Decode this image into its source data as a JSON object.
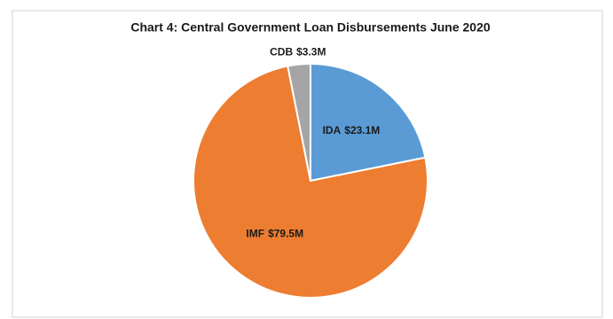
{
  "chart_data": {
    "type": "pie",
    "title": "Chart 4: Central Government Loan Disbursements June 2020",
    "categories": [
      "IDA",
      "IMF",
      "CDB"
    ],
    "values": [
      23.1,
      79.5,
      3.3
    ],
    "value_labels": [
      "$23.1M",
      "$79.5M",
      "$3.3M"
    ],
    "colors": [
      "#5b9bd5",
      "#ed7d31",
      "#a5a5a5"
    ]
  }
}
